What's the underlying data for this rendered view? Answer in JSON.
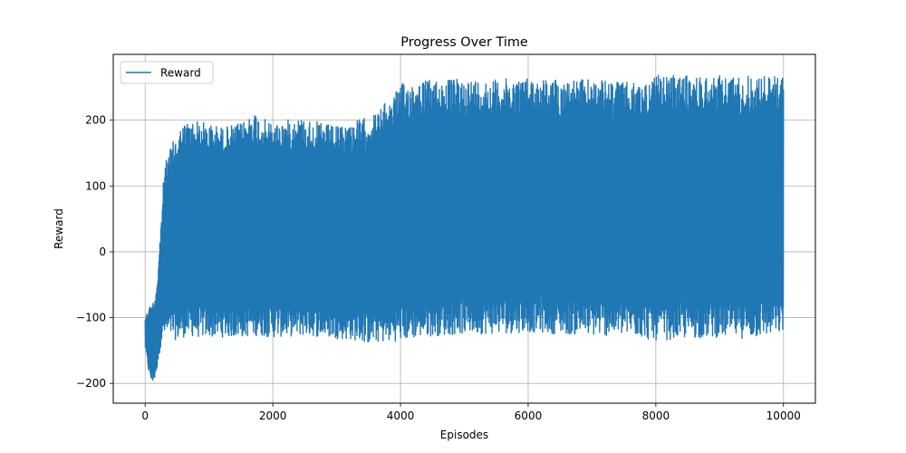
{
  "chart_data": {
    "type": "line",
    "title": "Progress Over Time",
    "xlabel": "Episodes",
    "ylabel": "Reward",
    "xlim": [
      -500,
      10500
    ],
    "ylim": [
      -230,
      300
    ],
    "xticks": [
      0,
      2000,
      4000,
      6000,
      8000,
      10000
    ],
    "yticks": [
      -200,
      -100,
      0,
      100,
      200
    ],
    "grid": true,
    "legend": {
      "placement": "top-left"
    },
    "series": [
      {
        "name": "Reward",
        "color": "#1f77b4",
        "x_range": [
          0,
          10000
        ],
        "n_points": 10000,
        "envelope": {
          "x": [
            0,
            50,
            100,
            150,
            200,
            250,
            300,
            400,
            500,
            600,
            700,
            800,
            1000,
            1200,
            1500,
            1700,
            1800,
            2000,
            2400,
            2600,
            2800,
            3000,
            3300,
            3500,
            3600,
            3700,
            3800,
            3900,
            4000,
            4200,
            4500,
            5000,
            5500,
            6000,
            6500,
            7000,
            7500,
            7800,
            7900,
            8000,
            8500,
            9000,
            9500,
            10000
          ],
          "upper": [
            -100,
            -85,
            -80,
            -70,
            -30,
            50,
            130,
            160,
            180,
            195,
            200,
            200,
            195,
            190,
            195,
            215,
            205,
            195,
            205,
            200,
            195,
            190,
            200,
            205,
            210,
            220,
            230,
            240,
            255,
            260,
            262,
            263,
            262,
            265,
            262,
            262,
            258,
            255,
            262,
            268,
            268,
            268,
            268,
            268
          ],
          "lower": [
            -145,
            -180,
            -200,
            -195,
            -170,
            -140,
            -130,
            -130,
            -135,
            -130,
            -128,
            -130,
            -130,
            -130,
            -130,
            -128,
            -128,
            -130,
            -128,
            -128,
            -130,
            -132,
            -135,
            -140,
            -138,
            -138,
            -138,
            -136,
            -136,
            -132,
            -128,
            -125,
            -125,
            -122,
            -125,
            -128,
            -128,
            -130,
            -135,
            -135,
            -132,
            -130,
            -132,
            -125
          ]
        }
      }
    ]
  }
}
